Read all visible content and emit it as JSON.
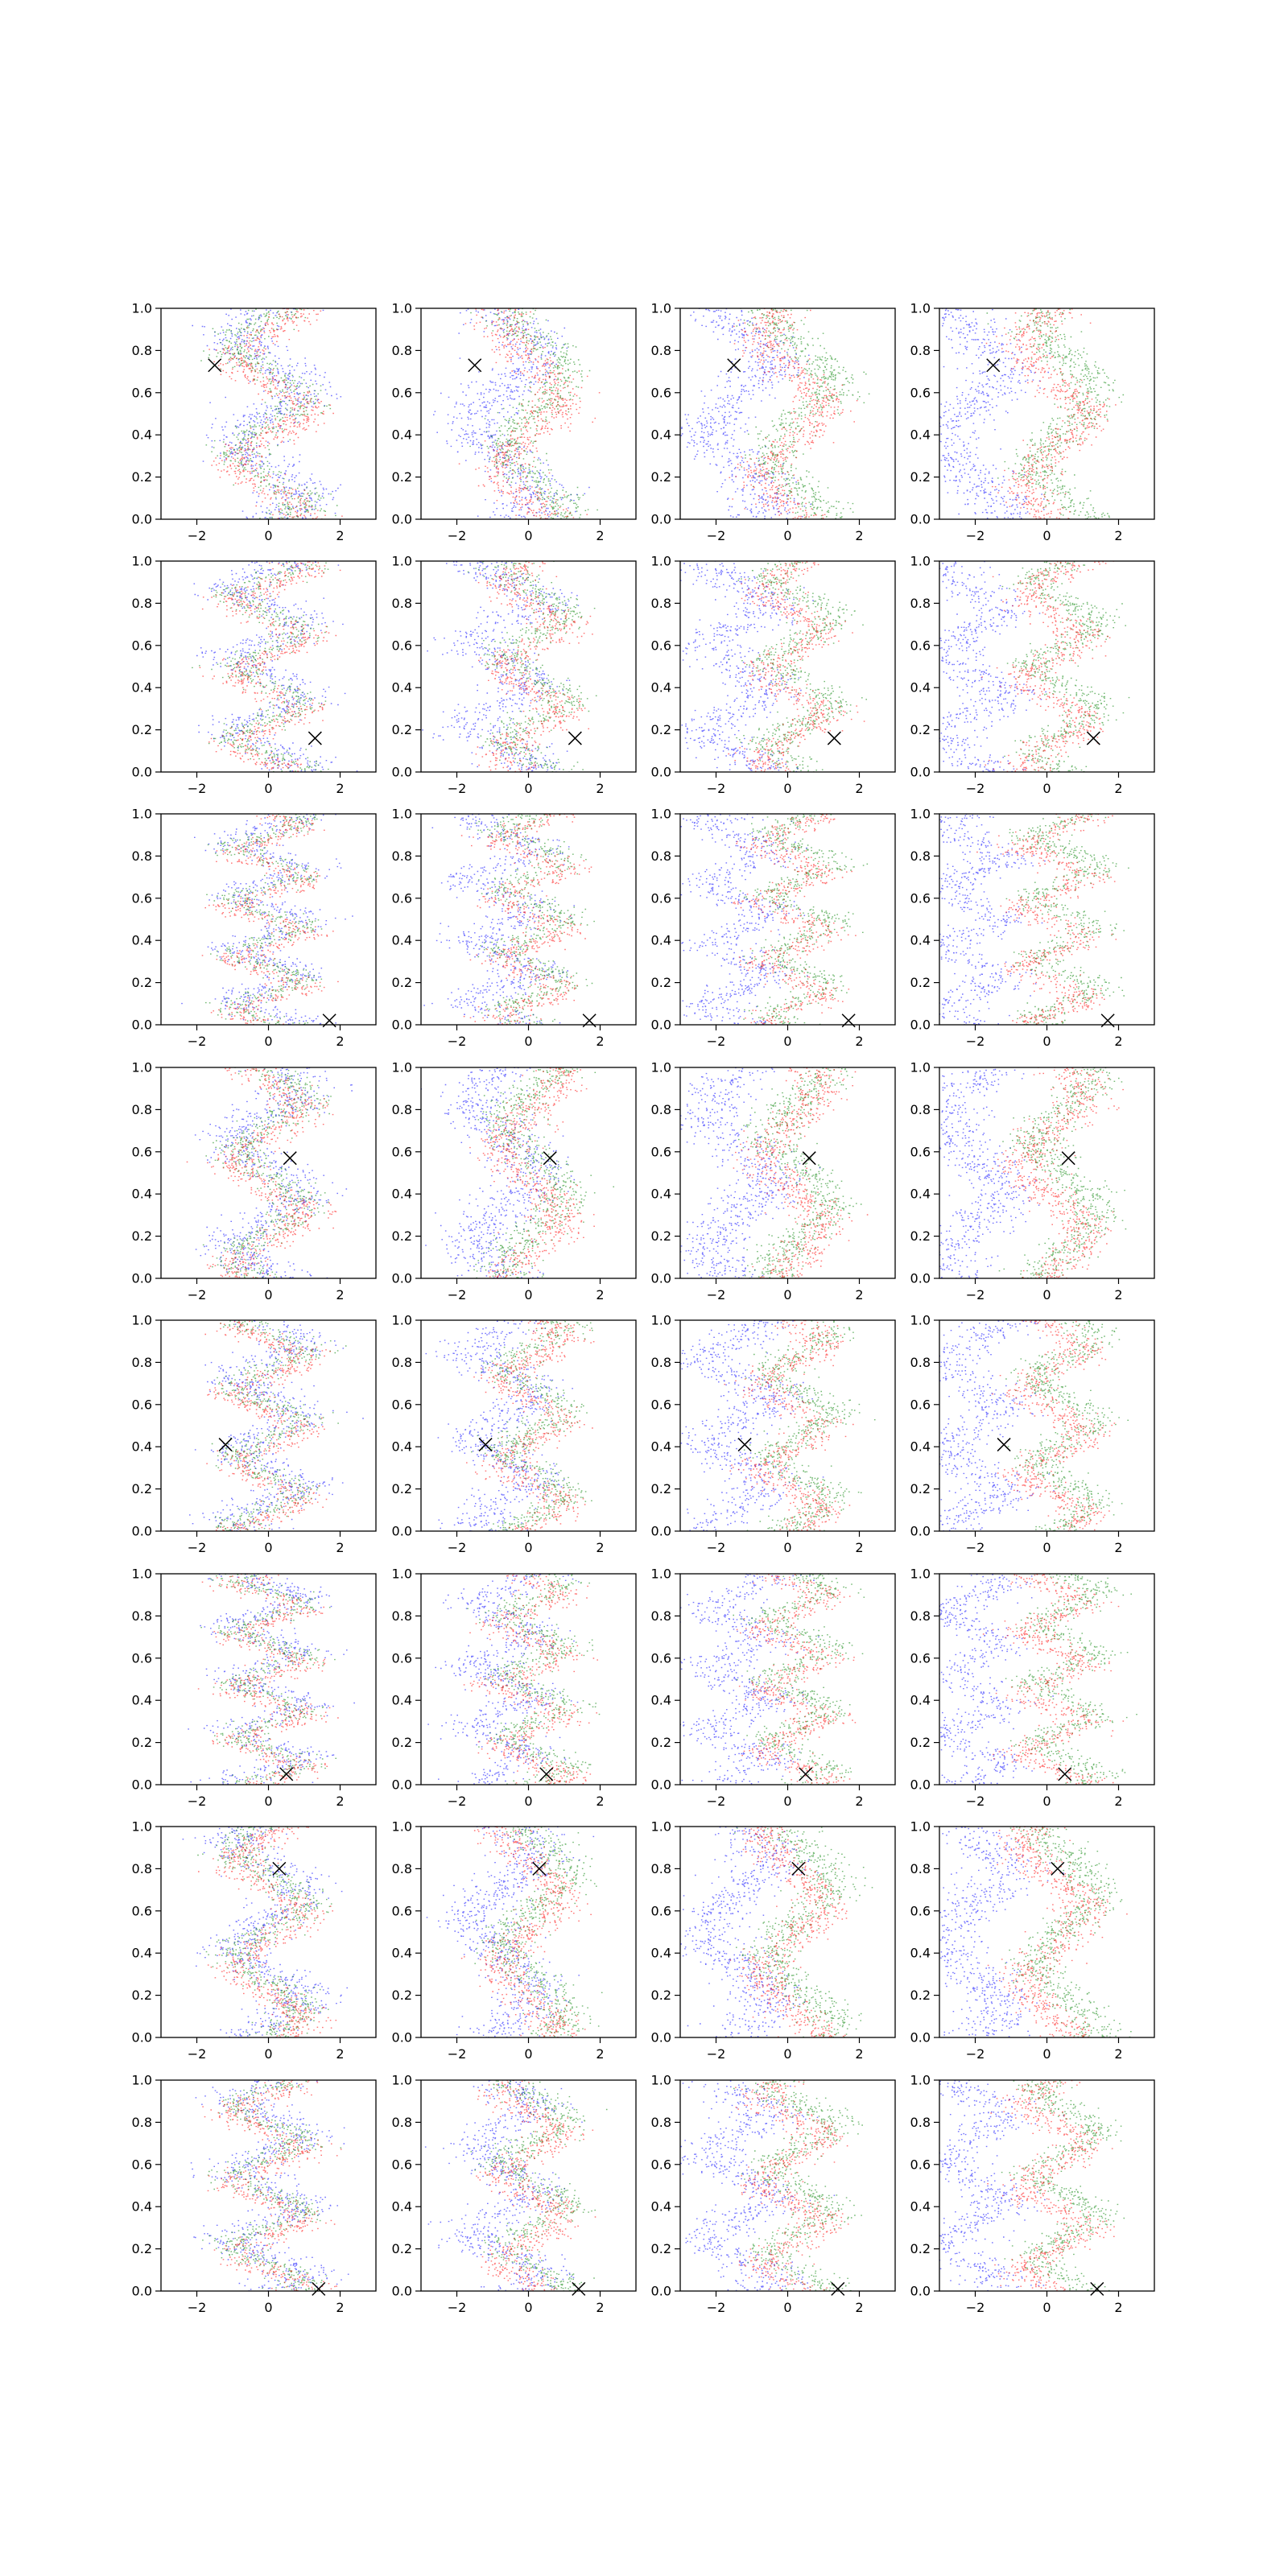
{
  "figure": {
    "rows": 8,
    "cols": 4
  },
  "colors": {
    "blue": "#0000ff",
    "green": "#008000",
    "red": "#ff0000",
    "marker": "#000000"
  },
  "chart_data": {
    "type": "scatter",
    "panels": 32,
    "marker_symbol": "x",
    "xlim": [
      -3,
      3
    ],
    "ylim": [
      0,
      1
    ],
    "xticks": [
      -2,
      0,
      2
    ],
    "yticks": [
      0.0,
      0.2,
      0.4,
      0.6,
      0.8,
      1.0
    ],
    "xtick_labels": [
      "−2",
      "0",
      "2"
    ],
    "ytick_labels": [
      "0.0",
      "0.2",
      "0.4",
      "0.6",
      "0.8",
      "1.0"
    ],
    "show_yticks_cols": [
      0,
      1,
      2,
      3
    ],
    "grid": false,
    "markers_by_row": [
      {
        "x": -1.5,
        "y": 0.73
      },
      {
        "x": 1.3,
        "y": 0.16
      },
      {
        "x": 1.7,
        "y": 0.02
      },
      {
        "x": 0.6,
        "y": 0.57
      },
      {
        "x": -1.2,
        "y": 0.41
      },
      {
        "x": 0.5,
        "y": 0.05
      },
      {
        "x": 0.3,
        "y": 0.8
      },
      {
        "x": 1.4,
        "y": 0.01
      }
    ]
  }
}
